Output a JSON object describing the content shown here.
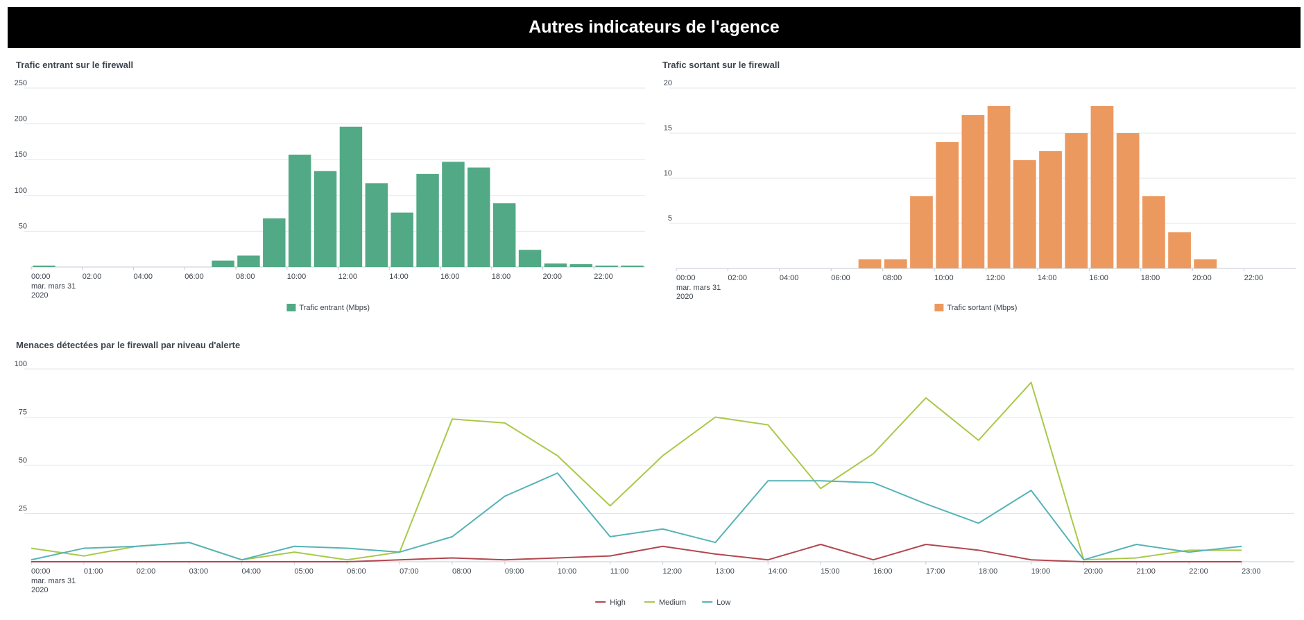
{
  "dashboard": {
    "title": "Autres indicateurs de l'agence"
  },
  "colors": {
    "banner_bg": "#000000",
    "grid": "#e1e6eb",
    "axis": "#c3cbd4",
    "text": "#3c444d"
  },
  "chart_data": [
    {
      "type": "bar",
      "title": "Trafic entrant sur le firewall",
      "x": [
        "00:00",
        "01:00",
        "02:00",
        "03:00",
        "04:00",
        "05:00",
        "06:00",
        "07:00",
        "08:00",
        "09:00",
        "10:00",
        "11:00",
        "12:00",
        "13:00",
        "14:00",
        "15:00",
        "16:00",
        "17:00",
        "18:00",
        "19:00",
        "20:00",
        "21:00",
        "22:00",
        "23:00"
      ],
      "xticks": [
        "00:00",
        "02:00",
        "04:00",
        "06:00",
        "08:00",
        "10:00",
        "12:00",
        "14:00",
        "16:00",
        "18:00",
        "20:00",
        "22:00"
      ],
      "xtick_sub": [
        "mar. mars 31",
        "2020"
      ],
      "yticks": [
        50,
        100,
        150,
        200,
        250
      ],
      "ylim": [
        0,
        250
      ],
      "grid": true,
      "legend_position": "bottom",
      "series": [
        {
          "name": "Trafic entrant (Mbps)",
          "color": "#52a986",
          "values": [
            2,
            0,
            0,
            0,
            0,
            0,
            0,
            9,
            16,
            68,
            157,
            134,
            196,
            117,
            76,
            130,
            147,
            139,
            89,
            24,
            5,
            4,
            2,
            2
          ]
        }
      ]
    },
    {
      "type": "bar",
      "title": "Trafic sortant sur le firewall",
      "x": [
        "00:00",
        "01:00",
        "02:00",
        "03:00",
        "04:00",
        "05:00",
        "06:00",
        "07:00",
        "08:00",
        "09:00",
        "10:00",
        "11:00",
        "12:00",
        "13:00",
        "14:00",
        "15:00",
        "16:00",
        "17:00",
        "18:00",
        "19:00",
        "20:00",
        "21:00",
        "22:00",
        "23:00"
      ],
      "xticks": [
        "00:00",
        "02:00",
        "04:00",
        "06:00",
        "08:00",
        "10:00",
        "12:00",
        "14:00",
        "16:00",
        "18:00",
        "20:00",
        "22:00"
      ],
      "xtick_sub": [
        "mar. mars 31",
        "2020"
      ],
      "yticks": [
        5,
        10,
        15,
        20
      ],
      "ylim": [
        0,
        20
      ],
      "grid": true,
      "legend_position": "bottom",
      "series": [
        {
          "name": "Trafic sortant (Mbps)",
          "color": "#ec9960",
          "values": [
            0,
            0,
            0,
            0,
            0,
            0,
            0,
            1,
            1,
            8,
            14,
            17,
            18,
            12,
            13,
            15,
            18,
            15,
            8,
            4,
            1,
            0,
            0,
            0
          ]
        }
      ]
    },
    {
      "type": "line",
      "title": "Menaces détectées par le firewall par niveau d'alerte",
      "x": [
        "00:00",
        "01:00",
        "02:00",
        "03:00",
        "04:00",
        "05:00",
        "06:00",
        "07:00",
        "08:00",
        "09:00",
        "10:00",
        "11:00",
        "12:00",
        "13:00",
        "14:00",
        "15:00",
        "16:00",
        "17:00",
        "18:00",
        "19:00",
        "20:00",
        "21:00",
        "22:00",
        "23:00"
      ],
      "xticks": [
        "00:00",
        "01:00",
        "02:00",
        "03:00",
        "04:00",
        "05:00",
        "06:00",
        "07:00",
        "08:00",
        "09:00",
        "10:00",
        "11:00",
        "12:00",
        "13:00",
        "14:00",
        "15:00",
        "16:00",
        "17:00",
        "18:00",
        "19:00",
        "20:00",
        "21:00",
        "22:00",
        "23:00"
      ],
      "xtick_sub": [
        "mar. mars 31",
        "2020"
      ],
      "yticks": [
        25,
        50,
        75,
        100
      ],
      "ylim": [
        0,
        100
      ],
      "grid": true,
      "legend_position": "bottom",
      "series": [
        {
          "name": "High",
          "color": "#b2474f",
          "values": [
            0,
            0,
            0,
            0,
            0,
            0,
            0,
            1,
            2,
            1,
            2,
            3,
            8,
            4,
            1,
            9,
            1,
            9,
            6,
            1,
            0,
            0,
            0,
            0
          ]
        },
        {
          "name": "Medium",
          "color": "#a9c94a",
          "values": [
            7,
            3,
            8,
            10,
            1,
            5,
            1,
            5,
            74,
            72,
            55,
            29,
            55,
            75,
            71,
            38,
            56,
            85,
            63,
            93,
            1,
            2,
            6,
            6
          ]
        },
        {
          "name": "Low",
          "color": "#56b3b6",
          "values": [
            1,
            7,
            8,
            10,
            1,
            8,
            7,
            5,
            13,
            34,
            46,
            13,
            17,
            10,
            42,
            42,
            41,
            30,
            20,
            37,
            1,
            9,
            5,
            8
          ]
        }
      ]
    }
  ]
}
